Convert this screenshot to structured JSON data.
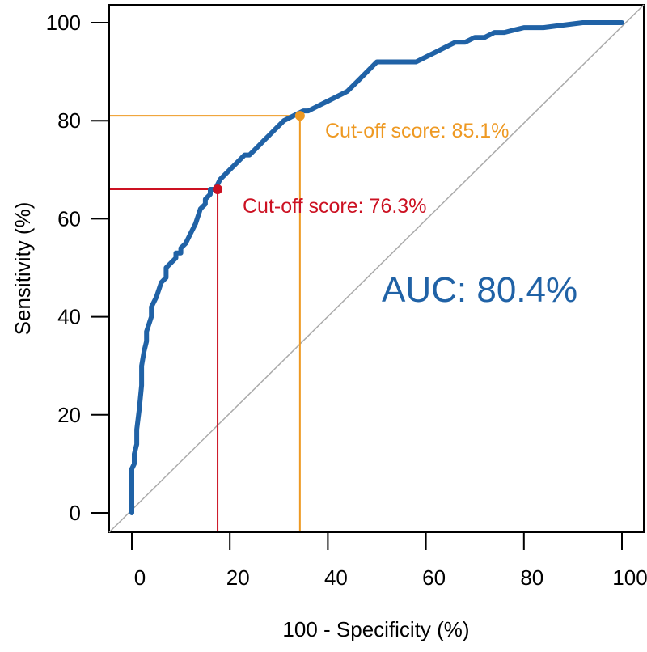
{
  "chart_data": {
    "type": "line",
    "title": "",
    "xlabel": "100 - Specificity (%)",
    "ylabel": "Sensitivity (%)",
    "xlim": [
      -5,
      105
    ],
    "ylim": [
      -4,
      104
    ],
    "xticks": [
      0,
      20,
      40,
      60,
      80,
      100
    ],
    "yticks": [
      0,
      20,
      40,
      60,
      80,
      100
    ],
    "grid": false,
    "series": [
      {
        "color": "#2062a6",
        "x": [
          0,
          0,
          0.5,
          0.5,
          1,
          1,
          1.5,
          2,
          2,
          2.5,
          3,
          3,
          4,
          4,
          5,
          6,
          7,
          7,
          8,
          9,
          9,
          10,
          10,
          11,
          12,
          13,
          14,
          15,
          15,
          16,
          16,
          17,
          17.5,
          18,
          19,
          20,
          21,
          22,
          23,
          24,
          25,
          26,
          27,
          28,
          29,
          30,
          31,
          32,
          33,
          34,
          35,
          36,
          38,
          40,
          42,
          44,
          46,
          48,
          50,
          52,
          55,
          58,
          60,
          62,
          64,
          66,
          68,
          70,
          72,
          74,
          76,
          80,
          84,
          88,
          92,
          96,
          100
        ],
        "y": [
          0,
          9,
          10,
          12,
          14,
          17,
          21,
          26,
          30,
          33,
          35,
          37,
          40,
          42,
          44,
          47,
          48,
          50,
          51,
          52,
          53,
          53,
          54,
          55,
          57,
          59,
          62,
          63,
          64,
          65,
          66,
          66,
          67,
          68,
          69,
          70,
          71,
          72,
          73,
          73,
          74,
          75,
          76,
          77,
          78,
          79,
          80,
          80.5,
          81,
          81.5,
          82,
          82,
          83,
          84,
          85,
          86,
          88,
          90,
          92,
          92,
          92,
          92,
          93,
          94,
          95,
          96,
          96,
          97,
          97,
          98,
          98,
          99,
          99,
          99.5,
          100,
          100,
          100
        ]
      }
    ],
    "reference_line": {
      "from": [
        0,
        0
      ],
      "to": [
        100,
        100
      ],
      "color": "#aaaaaa"
    },
    "cutoffs": [
      {
        "label": "Cut-off score: 76.3%",
        "x": 17.5,
        "y": 66,
        "color": "#cc1122"
      },
      {
        "label": "Cut-off score: 85.1%",
        "x": 34.3,
        "y": 81,
        "color": "#ee9922"
      }
    ],
    "annotation": {
      "text": "AUC: 80.4%",
      "color": "#2062a6"
    }
  }
}
